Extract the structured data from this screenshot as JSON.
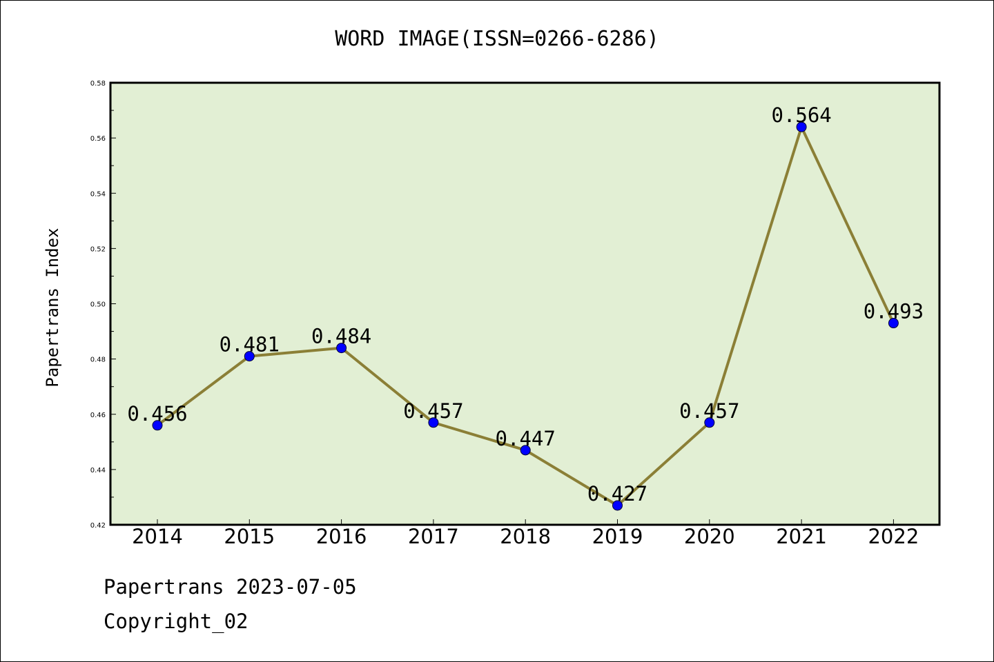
{
  "chart_data": {
    "type": "line",
    "title": "WORD IMAGE(ISSN=0266-6286)",
    "xlabel": "",
    "ylabel": "Papertrans Index",
    "categories": [
      "2014",
      "2015",
      "2016",
      "2017",
      "2018",
      "2019",
      "2020",
      "2021",
      "2022"
    ],
    "values": [
      0.456,
      0.481,
      0.484,
      0.457,
      0.447,
      0.427,
      0.457,
      0.564,
      0.493
    ],
    "data_labels": [
      "0.456",
      "0.481",
      "0.484",
      "0.457",
      "0.447",
      "0.427",
      "0.457",
      "0.564",
      "0.493"
    ],
    "ylim": [
      0.42,
      0.58
    ],
    "yticks": [
      "0.42",
      "0.44",
      "0.46",
      "0.48",
      "0.50",
      "0.52",
      "0.54",
      "0.56",
      "0.58"
    ],
    "grid": false,
    "colors": {
      "plot_background": "#e2efd4",
      "line": "#8b7f36",
      "marker": "#0000ff"
    }
  },
  "footer": {
    "date_line": "Papertrans 2023-07-05",
    "copyright": "Copyright_02"
  }
}
